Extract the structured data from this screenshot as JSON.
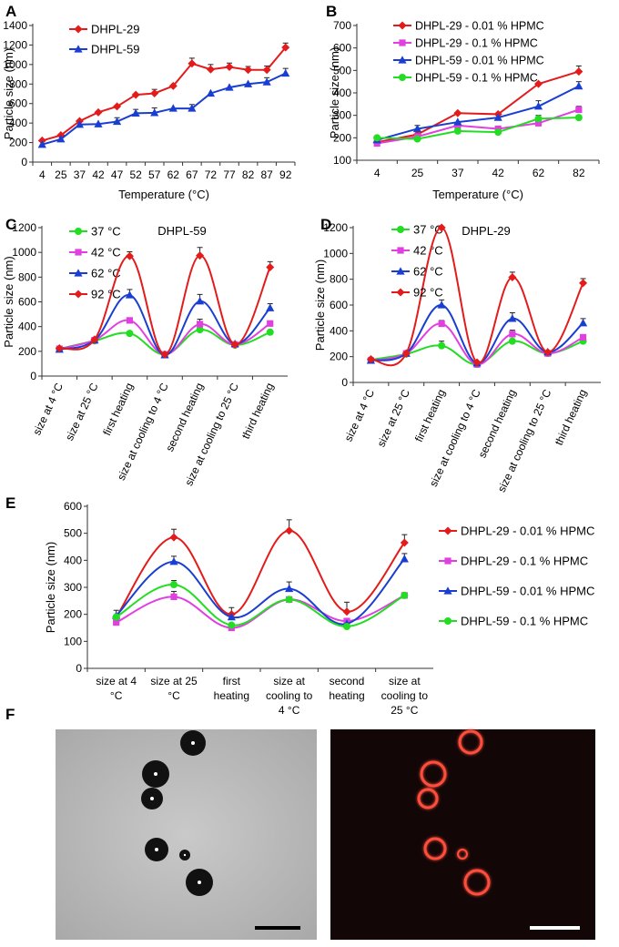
{
  "colors": {
    "red": "#e31b1b",
    "pink": "#e040e0",
    "blue": "#1a3fd0",
    "green": "#22dd22",
    "axis": "#333333"
  },
  "charts": {
    "A": {
      "panel_label": "A",
      "type": "line",
      "categories": [
        "4",
        "25",
        "37",
        "42",
        "47",
        "52",
        "57",
        "62",
        "67",
        "72",
        "77",
        "82",
        "87",
        "92"
      ],
      "xlabel": "Temperature  (°C)",
      "ylabel": "Particle size (nm)",
      "yticks": [
        "0",
        "200",
        "400",
        "600",
        "800",
        "1000",
        "1200",
        "1400"
      ],
      "ylim": [
        0,
        1400
      ],
      "series": [
        {
          "name": "DHPL-29",
          "color": "red",
          "marker": "diamond",
          "values": [
            220,
            275,
            420,
            510,
            570,
            690,
            705,
            780,
            1010,
            950,
            975,
            945,
            945,
            1175
          ],
          "err": [
            0,
            0,
            0,
            0,
            0,
            0,
            40,
            0,
            55,
            50,
            40,
            35,
            40,
            45
          ]
        },
        {
          "name": "DHPL-59",
          "color": "blue",
          "marker": "triangle",
          "values": [
            180,
            235,
            385,
            390,
            415,
            500,
            505,
            550,
            550,
            705,
            765,
            800,
            820,
            910
          ],
          "err": [
            0,
            0,
            0,
            0,
            40,
            40,
            50,
            0,
            40,
            0,
            0,
            0,
            45,
            50
          ]
        }
      ]
    },
    "B": {
      "panel_label": "B",
      "type": "line",
      "categories": [
        "4",
        "25",
        "37",
        "42",
        "62",
        "82"
      ],
      "xlabel": "Temperature  (°C)",
      "ylabel": "Particle size (nm)",
      "yticks": [
        "100",
        "200",
        "300",
        "400",
        "500",
        "600",
        "700"
      ],
      "ylim": [
        100,
        700
      ],
      "series": [
        {
          "name": "DHPL-29 - 0.01 % HPMC",
          "color": "red",
          "marker": "diamond",
          "values": [
            180,
            215,
            310,
            305,
            440,
            495
          ],
          "err": [
            0,
            0,
            0,
            0,
            0,
            25
          ]
        },
        {
          "name": "DHPL-29 - 0.1 % HPMC",
          "color": "pink",
          "marker": "square",
          "values": [
            175,
            205,
            255,
            240,
            265,
            325
          ],
          "err": [
            0,
            0,
            0,
            0,
            0,
            15
          ]
        },
        {
          "name": "DHPL-59 - 0.01 % HPMC",
          "color": "blue",
          "marker": "triangle",
          "values": [
            190,
            240,
            270,
            290,
            340,
            430
          ],
          "err": [
            0,
            15,
            0,
            0,
            25,
            20
          ]
        },
        {
          "name": "DHPL-59 - 0.1 % HPMC",
          "color": "green",
          "marker": "circle",
          "values": [
            200,
            195,
            230,
            225,
            285,
            290
          ],
          "err": [
            0,
            0,
            0,
            0,
            15,
            0
          ]
        }
      ]
    },
    "C": {
      "panel_label": "C",
      "type": "line",
      "title": "DHPL-59",
      "categories": [
        "size at 4 °C",
        "size at 25 °C",
        "first heating",
        "size at cooling to 4 °C",
        "second heating",
        "size at cooling to 25 °C",
        "third heating"
      ],
      "ylabel": "Particle size (nm)",
      "yticks": [
        "0",
        "200",
        "400",
        "600",
        "800",
        "1000",
        "1200"
      ],
      "ylim": [
        0,
        1200
      ],
      "series": [
        {
          "name": "37 °C",
          "color": "green",
          "marker": "circle",
          "values": [
            220,
            285,
            345,
            175,
            375,
            250,
            355
          ],
          "err": [
            0,
            0,
            0,
            0,
            30,
            0,
            0
          ]
        },
        {
          "name": "42 °C",
          "color": "pink",
          "marker": "square",
          "values": [
            220,
            290,
            450,
            175,
            420,
            255,
            425
          ],
          "err": [
            0,
            0,
            20,
            0,
            40,
            0,
            0
          ]
        },
        {
          "name": "62 °C",
          "color": "blue",
          "marker": "triangle",
          "values": [
            215,
            290,
            655,
            170,
            605,
            260,
            550
          ],
          "err": [
            0,
            0,
            45,
            0,
            55,
            0,
            35
          ]
        },
        {
          "name": "92 °C",
          "color": "red",
          "marker": "diamond",
          "values": [
            225,
            295,
            970,
            175,
            975,
            255,
            880
          ],
          "err": [
            0,
            0,
            35,
            0,
            65,
            0,
            45
          ]
        }
      ]
    },
    "D": {
      "panel_label": "D",
      "type": "line",
      "title": "DHPL-29",
      "categories": [
        "size at 4 °C",
        "size at 25 °C",
        "first heating",
        "size at cooling to 4 °C",
        "second heating",
        "size at cooling to 25 °C",
        "third heating"
      ],
      "ylabel": "Particle size (nm)",
      "yticks": [
        "0",
        "200",
        "400",
        "600",
        "800",
        "1000",
        "1200"
      ],
      "ylim": [
        0,
        1200
      ],
      "series": [
        {
          "name": "37 °C",
          "color": "green",
          "marker": "circle",
          "values": [
            175,
            220,
            285,
            140,
            320,
            225,
            320
          ],
          "err": [
            0,
            0,
            35,
            0,
            0,
            0,
            0
          ]
        },
        {
          "name": "42 °C",
          "color": "pink",
          "marker": "square",
          "values": [
            170,
            225,
            455,
            140,
            375,
            225,
            350
          ],
          "err": [
            0,
            0,
            25,
            0,
            30,
            0,
            0
          ]
        },
        {
          "name": "62 °C",
          "color": "blue",
          "marker": "triangle",
          "values": [
            170,
            225,
            600,
            150,
            495,
            235,
            460
          ],
          "err": [
            0,
            0,
            40,
            0,
            45,
            0,
            35
          ]
        },
        {
          "name": "92 °C",
          "color": "red",
          "marker": "diamond",
          "values": [
            180,
            225,
            1200,
            155,
            815,
            235,
            770
          ],
          "err": [
            0,
            0,
            0,
            0,
            40,
            0,
            35
          ]
        }
      ]
    },
    "E": {
      "panel_label": "E",
      "type": "line",
      "categories": [
        "size at 4 °C",
        "size at 25 °C",
        "first heating",
        "size at cooling to 4 °C",
        "second heating",
        "size at cooling to 25 °C"
      ],
      "ylabel": "Particle size (nm)",
      "yticks": [
        "0",
        "100",
        "200",
        "300",
        "400",
        "500",
        "600"
      ],
      "ylim": [
        0,
        600
      ],
      "series": [
        {
          "name": "DHPL-29 - 0.01 % HPMC",
          "color": "red",
          "marker": "diamond",
          "values": [
            190,
            485,
            200,
            510,
            210,
            465
          ],
          "err": [
            0,
            30,
            25,
            40,
            35,
            30
          ]
        },
        {
          "name": "DHPL-29 - 0.1 % HPMC",
          "color": "pink",
          "marker": "square",
          "values": [
            170,
            265,
            150,
            255,
            175,
            270
          ],
          "err": [
            0,
            20,
            0,
            0,
            0,
            0
          ]
        },
        {
          "name": "DHPL-59 - 0.01 % HPMC",
          "color": "blue",
          "marker": "triangle",
          "values": [
            195,
            395,
            190,
            295,
            165,
            405
          ],
          "err": [
            20,
            20,
            0,
            25,
            0,
            20
          ]
        },
        {
          "name": "DHPL-59 - 0.1 % HPMC",
          "color": "green",
          "marker": "circle",
          "values": [
            190,
            310,
            160,
            255,
            155,
            270
          ],
          "err": [
            0,
            15,
            0,
            0,
            0,
            0
          ]
        }
      ]
    }
  },
  "panel_f": {
    "panel_label": "F",
    "micrograph_left": "brightfield-micrograph",
    "micrograph_right": "fluorescence-micrograph"
  },
  "chart_data": [
    {
      "type": "line",
      "panel": "A",
      "categories": [
        "4",
        "25",
        "37",
        "42",
        "47",
        "52",
        "57",
        "62",
        "67",
        "72",
        "77",
        "82",
        "87",
        "92"
      ],
      "xlabel": "Temperature  (°C)",
      "ylabel": "Particle size (nm)",
      "ylim": [
        0,
        1400
      ],
      "series": [
        {
          "name": "DHPL-29",
          "values": [
            220,
            275,
            420,
            510,
            570,
            690,
            705,
            780,
            1010,
            950,
            975,
            945,
            945,
            1175
          ]
        },
        {
          "name": "DHPL-59",
          "values": [
            180,
            235,
            385,
            390,
            415,
            500,
            505,
            550,
            550,
            705,
            765,
            800,
            820,
            910
          ]
        }
      ]
    },
    {
      "type": "line",
      "panel": "B",
      "categories": [
        "4",
        "25",
        "37",
        "42",
        "62",
        "82"
      ],
      "xlabel": "Temperature  (°C)",
      "ylabel": "Particle size (nm)",
      "ylim": [
        100,
        700
      ],
      "series": [
        {
          "name": "DHPL-29 - 0.01 % HPMC",
          "values": [
            180,
            215,
            310,
            305,
            440,
            495
          ]
        },
        {
          "name": "DHPL-29 - 0.1 % HPMC",
          "values": [
            175,
            205,
            255,
            240,
            265,
            325
          ]
        },
        {
          "name": "DHPL-59 - 0.01 % HPMC",
          "values": [
            190,
            240,
            270,
            290,
            340,
            430
          ]
        },
        {
          "name": "DHPL-59 - 0.1 % HPMC",
          "values": [
            200,
            195,
            230,
            225,
            285,
            290
          ]
        }
      ]
    },
    {
      "type": "line",
      "panel": "C",
      "title": "DHPL-59",
      "ylabel": "Particle size (nm)",
      "ylim": [
        0,
        1200
      ],
      "categories": [
        "size at 4 °C",
        "size at 25 °C",
        "first heating",
        "size at cooling to 4 °C",
        "second heating",
        "size at cooling to 25 °C",
        "third heating"
      ],
      "series": [
        {
          "name": "37 °C",
          "values": [
            220,
            285,
            345,
            175,
            375,
            250,
            355
          ]
        },
        {
          "name": "42 °C",
          "values": [
            220,
            290,
            450,
            175,
            420,
            255,
            425
          ]
        },
        {
          "name": "62 °C",
          "values": [
            215,
            290,
            655,
            170,
            605,
            260,
            550
          ]
        },
        {
          "name": "92 °C",
          "values": [
            225,
            295,
            970,
            175,
            975,
            255,
            880
          ]
        }
      ]
    },
    {
      "type": "line",
      "panel": "D",
      "title": "DHPL-29",
      "ylabel": "Particle size (nm)",
      "ylim": [
        0,
        1200
      ],
      "categories": [
        "size at 4 °C",
        "size at 25 °C",
        "first heating",
        "size at cooling to 4 °C",
        "second heating",
        "size at cooling to 25 °C",
        "third heating"
      ],
      "series": [
        {
          "name": "37 °C",
          "values": [
            175,
            220,
            285,
            140,
            320,
            225,
            320
          ]
        },
        {
          "name": "42 °C",
          "values": [
            170,
            225,
            455,
            140,
            375,
            225,
            350
          ]
        },
        {
          "name": "62 °C",
          "values": [
            170,
            225,
            600,
            150,
            495,
            235,
            460
          ]
        },
        {
          "name": "92 °C",
          "values": [
            180,
            225,
            1200,
            155,
            815,
            235,
            770
          ]
        }
      ]
    },
    {
      "type": "line",
      "panel": "E",
      "ylabel": "Particle size (nm)",
      "ylim": [
        0,
        600
      ],
      "categories": [
        "size at 4 °C",
        "size at 25 °C",
        "first heating",
        "size at cooling to 4 °C",
        "second heating",
        "size at cooling to 25 °C"
      ],
      "series": [
        {
          "name": "DHPL-29 - 0.01 % HPMC",
          "values": [
            190,
            485,
            200,
            510,
            210,
            465
          ]
        },
        {
          "name": "DHPL-29 - 0.1 % HPMC",
          "values": [
            170,
            265,
            150,
            255,
            175,
            270
          ]
        },
        {
          "name": "DHPL-59 - 0.01 % HPMC",
          "values": [
            195,
            395,
            190,
            295,
            165,
            405
          ]
        },
        {
          "name": "DHPL-59 - 0.1 % HPMC",
          "values": [
            190,
            310,
            160,
            255,
            155,
            270
          ]
        }
      ]
    }
  ]
}
